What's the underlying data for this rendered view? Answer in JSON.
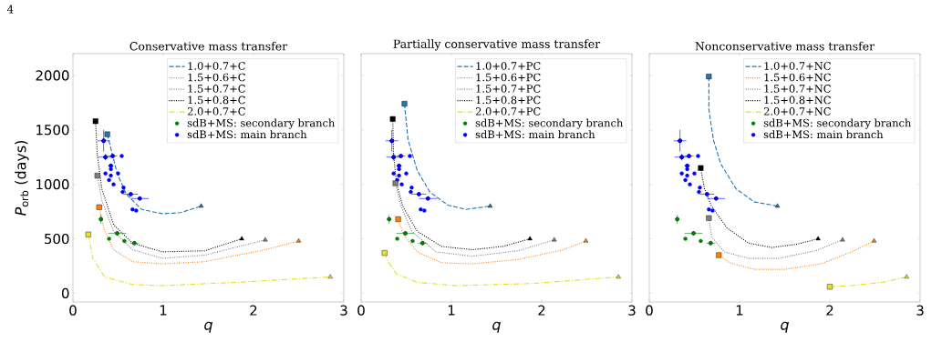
{
  "chart_data": [
    {
      "type": "line",
      "title": "Conservative mass transfer",
      "xlabel": "q",
      "ylabel": "*P*$_{orb}$ (days)",
      "annotations": [
        "4"
      ],
      "xlim": [
        0,
        3
      ],
      "ylim": [
        -80,
        2200
      ],
      "xticks": [
        0,
        1,
        2,
        3
      ],
      "yticks": [
        0,
        500,
        1000,
        1500,
        2000
      ],
      "legend": "top right",
      "series": [
        {
          "name": "1.0+0.7+C",
          "color": "#1f77b4",
          "line_style": "dashed",
          "x": [
            0.38,
            0.49,
            0.59,
            0.76,
            0.99,
            1.19,
            1.42
          ],
          "values": [
            1460,
            1100,
            910,
            770,
            730,
            740,
            800
          ]
        },
        {
          "name": "1.5+0.6+C",
          "color": "#ff7f0e",
          "line_style": "dotted",
          "x": [
            0.29,
            0.34,
            0.45,
            0.66,
            0.99,
            1.46,
            2.13,
            2.5
          ],
          "values": [
            790,
            600,
            400,
            290,
            270,
            290,
            400,
            480
          ]
        },
        {
          "name": "1.5+0.7+C",
          "color": "#7f7f7f",
          "line_style": "dotted",
          "x": [
            0.27,
            0.32,
            0.45,
            0.66,
            0.99,
            1.46,
            2.13
          ],
          "values": [
            1080,
            850,
            570,
            400,
            320,
            350,
            490
          ]
        },
        {
          "name": "1.5+0.8+C",
          "color": "#000000",
          "line_style": "dotted",
          "x": [
            0.25,
            0.27,
            0.32,
            0.45,
            0.66,
            0.99,
            1.46,
            1.87
          ],
          "values": [
            1580,
            1270,
            960,
            630,
            460,
            380,
            390,
            500
          ]
        },
        {
          "name": "2.0+0.7+C",
          "color": "#e8e020",
          "line_style": "dashdot",
          "x": [
            0.17,
            0.22,
            0.35,
            0.66,
            0.99,
            1.8,
            2.85
          ],
          "values": [
            540,
            320,
            150,
            80,
            70,
            100,
            150
          ]
        },
        {
          "name": "sdB+MS: secondary branch",
          "type": "scatter",
          "marker": "circle",
          "color": "#008000",
          "x": [
            0.31,
            0.49,
            0.4,
            0.57,
            0.68
          ],
          "values": [
            680,
            550,
            500,
            480,
            460
          ],
          "xerrors": [
            null,
            0.1,
            null,
            null,
            0.05
          ],
          "errors": [
            40,
            null,
            null,
            null,
            null
          ]
        },
        {
          "name": "sdB+MS: main branch",
          "type": "scatter",
          "marker": "circle",
          "color": "#0000ff",
          "x": [
            0.34,
            0.36,
            0.44,
            0.54,
            0.42,
            0.42,
            0.36,
            0.42,
            0.5,
            0.4,
            0.45,
            0.56,
            0.55,
            0.64,
            0.74,
            0.66,
            0.7
          ],
          "values": [
            1400,
            1250,
            1260,
            1260,
            1170,
            1140,
            1100,
            1080,
            1100,
            1040,
            1000,
            970,
            930,
            910,
            870,
            770,
            760
          ],
          "xerrors": [
            0.07,
            0.08,
            0.05,
            null,
            0.03,
            null,
            null,
            null,
            null,
            null,
            null,
            null,
            null,
            0.08,
            0.1,
            null,
            null
          ],
          "errors": [
            100,
            30,
            null,
            null,
            null,
            null,
            null,
            null,
            null,
            null,
            null,
            null,
            null,
            null,
            null,
            null,
            null
          ]
        },
        {
          "type": "scatter",
          "marker": "square",
          "x": [
            0.38,
            0.29,
            0.27,
            0.25,
            0.17
          ],
          "values": [
            1460,
            790,
            1080,
            1580,
            540
          ],
          "colors": [
            "#1f77b4",
            "#ff7f0e",
            "#7f7f7f",
            "#000000",
            "#e8e020"
          ]
        },
        {
          "type": "scatter",
          "marker": "triangle",
          "x": [
            1.42,
            2.5,
            2.13,
            1.87,
            2.85
          ],
          "values": [
            800,
            480,
            490,
            500,
            150
          ],
          "colors": [
            "#1f77b4",
            "#ff7f0e",
            "#7f7f7f",
            "#000000",
            "#e8e020"
          ]
        }
      ]
    },
    {
      "type": "line",
      "title": "Partially conservative mass transfer",
      "xlabel": "q",
      "xlim": [
        0,
        3
      ],
      "ylim": [
        -80,
        2200
      ],
      "xticks": [
        0,
        1,
        2,
        3
      ],
      "yticks": [
        0,
        500,
        1000,
        1500,
        2000
      ],
      "legend": "top right",
      "tick_labels": "x",
      "series": [
        {
          "name": "1.0+0.7+PC",
          "color": "#1f77b4",
          "line_style": "dashed",
          "x": [
            0.48,
            0.52,
            0.62,
            0.76,
            0.96,
            1.16,
            1.43
          ],
          "values": [
            1740,
            1410,
            1130,
            930,
            810,
            770,
            800
          ]
        },
        {
          "name": "1.5+0.6+PC",
          "color": "#ff7f0e",
          "line_style": "dotted",
          "x": [
            0.41,
            0.47,
            0.62,
            0.89,
            1.23,
            1.74,
            2.24,
            2.49
          ],
          "values": [
            680,
            540,
            380,
            280,
            270,
            310,
            400,
            480
          ]
        },
        {
          "name": "1.5+0.7+PC",
          "color": "#7f7f7f",
          "line_style": "dotted",
          "x": [
            0.38,
            0.44,
            0.56,
            0.83,
            1.23,
            1.74,
            2.14
          ],
          "values": [
            1010,
            800,
            570,
            380,
            340,
            390,
            490
          ]
        },
        {
          "name": "1.5+0.8+PC",
          "color": "#000000",
          "line_style": "dotted",
          "x": [
            0.35,
            0.36,
            0.39,
            0.46,
            0.62,
            0.89,
            1.23,
            1.57,
            1.87
          ],
          "values": [
            1600,
            1270,
            1020,
            800,
            570,
            430,
            400,
            430,
            500
          ]
        },
        {
          "name": "2.0+0.7+PC",
          "color": "#e8e020",
          "line_style": "dashdot",
          "x": [
            0.26,
            0.3,
            0.39,
            0.62,
            1.06,
            1.9,
            2.85
          ],
          "values": [
            370,
            290,
            180,
            100,
            70,
            90,
            150
          ]
        },
        {
          "name": "sdB+MS: secondary branch",
          "type": "scatter",
          "marker": "circle",
          "color": "#008000",
          "x": [
            0.31,
            0.49,
            0.4,
            0.57,
            0.68
          ],
          "values": [
            680,
            550,
            500,
            480,
            460
          ],
          "xerrors": [
            null,
            0.1,
            null,
            null,
            0.05
          ],
          "errors": [
            40,
            null,
            null,
            null,
            null
          ]
        },
        {
          "name": "sdB+MS: main branch",
          "type": "scatter",
          "marker": "circle",
          "color": "#0000ff",
          "x": [
            0.34,
            0.36,
            0.44,
            0.54,
            0.42,
            0.42,
            0.36,
            0.42,
            0.5,
            0.4,
            0.45,
            0.56,
            0.55,
            0.64,
            0.74,
            0.66,
            0.7
          ],
          "values": [
            1400,
            1250,
            1260,
            1260,
            1170,
            1140,
            1100,
            1080,
            1100,
            1040,
            1000,
            970,
            930,
            910,
            870,
            770,
            760
          ],
          "xerrors": [
            0.07,
            0.08,
            0.05,
            null,
            0.03,
            null,
            null,
            null,
            null,
            null,
            null,
            null,
            null,
            0.08,
            0.1,
            null,
            null
          ],
          "errors": [
            100,
            30,
            null,
            null,
            null,
            null,
            null,
            null,
            null,
            null,
            null,
            null,
            null,
            null,
            null,
            null,
            null
          ]
        },
        {
          "type": "scatter",
          "marker": "square",
          "x": [
            0.48,
            0.41,
            0.38,
            0.35,
            0.26
          ],
          "values": [
            1740,
            680,
            1010,
            1600,
            370
          ],
          "colors": [
            "#1f77b4",
            "#ff7f0e",
            "#7f7f7f",
            "#000000",
            "#e8e020"
          ]
        },
        {
          "type": "scatter",
          "marker": "triangle",
          "x": [
            1.43,
            2.49,
            2.14,
            1.87,
            2.85
          ],
          "values": [
            800,
            480,
            490,
            500,
            150
          ],
          "colors": [
            "#1f77b4",
            "#ff7f0e",
            "#7f7f7f",
            "#000000",
            "#e8e020"
          ]
        }
      ]
    },
    {
      "type": "line",
      "title": "Nonconservative mass transfer",
      "xlabel": "q",
      "xlim": [
        0,
        3
      ],
      "ylim": [
        -80,
        2200
      ],
      "xticks": [
        0,
        1,
        2,
        3
      ],
      "yticks": [
        0,
        500,
        1000,
        1500,
        2000
      ],
      "legend": "top right",
      "tick_labels": "x",
      "series": [
        {
          "name": "1.0+0.7+NC",
          "color": "#1f77b4",
          "line_style": "dashed",
          "x": [
            0.66,
            0.66,
            0.71,
            0.79,
            0.96,
            1.16,
            1.42
          ],
          "values": [
            1990,
            1690,
            1410,
            1190,
            960,
            840,
            800
          ]
        },
        {
          "name": "1.5+0.6+NC",
          "color": "#ff7f0e",
          "line_style": "dotted",
          "x": [
            0.77,
            0.89,
            1.16,
            1.5,
            1.9,
            2.24,
            2.49
          ],
          "values": [
            350,
            280,
            220,
            220,
            270,
            380,
            480
          ]
        },
        {
          "name": "1.5+0.7+NC",
          "color": "#7f7f7f",
          "line_style": "dotted",
          "x": [
            0.66,
            0.69,
            0.83,
            1.1,
            1.43,
            1.84,
            2.14
          ],
          "values": [
            690,
            520,
            380,
            320,
            320,
            390,
            490
          ]
        },
        {
          "name": "1.5+0.8+NC",
          "color": "#000000",
          "line_style": "dotted",
          "x": [
            0.57,
            0.61,
            0.69,
            0.86,
            1.1,
            1.36,
            1.63,
            1.87
          ],
          "values": [
            1150,
            960,
            800,
            600,
            460,
            420,
            450,
            500
          ]
        },
        {
          "name": "2.0+0.7+NC",
          "color": "#e8e020",
          "line_style": "dashdot",
          "x": [
            2.0,
            2.24,
            2.58,
            2.85
          ],
          "values": [
            60,
            70,
            100,
            150
          ]
        },
        {
          "name": "sdB+MS: secondary branch",
          "type": "scatter",
          "marker": "circle",
          "color": "#008000",
          "x": [
            0.31,
            0.49,
            0.4,
            0.57,
            0.68
          ],
          "values": [
            680,
            550,
            500,
            480,
            460
          ],
          "xerrors": [
            null,
            0.1,
            null,
            null,
            0.05
          ],
          "errors": [
            40,
            null,
            null,
            null,
            null
          ]
        },
        {
          "name": "sdB+MS: main branch",
          "type": "scatter",
          "marker": "circle",
          "color": "#0000ff",
          "x": [
            0.34,
            0.36,
            0.44,
            0.54,
            0.42,
            0.42,
            0.36,
            0.42,
            0.5,
            0.4,
            0.45,
            0.56,
            0.55,
            0.64,
            0.74,
            0.66,
            0.7
          ],
          "values": [
            1400,
            1250,
            1260,
            1260,
            1170,
            1140,
            1100,
            1080,
            1100,
            1040,
            1000,
            970,
            930,
            910,
            870,
            770,
            760
          ],
          "xerrors": [
            0.07,
            0.08,
            0.05,
            null,
            0.03,
            null,
            null,
            null,
            null,
            null,
            null,
            null,
            null,
            0.08,
            0.1,
            null,
            null
          ],
          "errors": [
            100,
            30,
            null,
            null,
            null,
            null,
            null,
            null,
            null,
            null,
            null,
            null,
            null,
            null,
            null,
            null,
            null
          ]
        },
        {
          "type": "scatter",
          "marker": "square",
          "x": [
            0.66,
            0.77,
            0.66,
            0.57,
            2.0
          ],
          "values": [
            1990,
            350,
            690,
            1150,
            60
          ],
          "colors": [
            "#1f77b4",
            "#ff7f0e",
            "#7f7f7f",
            "#000000",
            "#e8e020"
          ]
        },
        {
          "type": "scatter",
          "marker": "triangle",
          "x": [
            1.42,
            2.49,
            2.14,
            1.87,
            2.85
          ],
          "values": [
            800,
            480,
            490,
            500,
            150
          ],
          "colors": [
            "#1f77b4",
            "#ff7f0e",
            "#7f7f7f",
            "#000000",
            "#e8e020"
          ]
        }
      ]
    }
  ]
}
